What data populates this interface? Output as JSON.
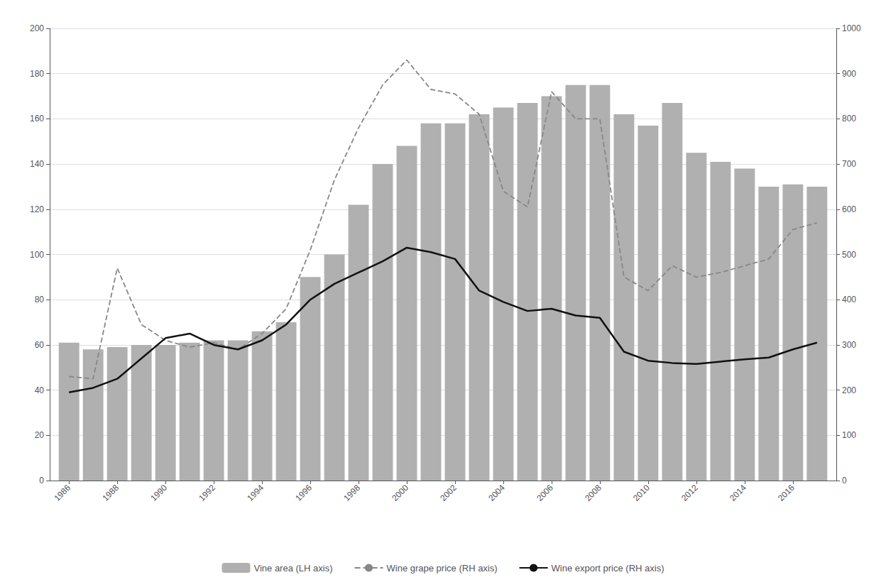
{
  "chart_data": {
    "type": "bar",
    "x": [
      1986,
      1987,
      1988,
      1989,
      1990,
      1991,
      1992,
      1993,
      1994,
      1995,
      1996,
      1997,
      1998,
      1999,
      2000,
      2001,
      2002,
      2003,
      2004,
      2005,
      2006,
      2007,
      2008,
      2009,
      2010,
      2011,
      2012,
      2013,
      2014,
      2015,
      2016,
      2017
    ],
    "series": [
      {
        "name": "Vine area (LH axis)",
        "type": "bar",
        "color": "#b0b0b0",
        "values": [
          61,
          58,
          59,
          60,
          60,
          61,
          62,
          62,
          66,
          70,
          90,
          100,
          122,
          140,
          148,
          158,
          158,
          162,
          165,
          167,
          170,
          175,
          175,
          162,
          157,
          167,
          145,
          141,
          138,
          130,
          131,
          130
        ]
      },
      {
        "name": "Wine grape price (RH axis)",
        "type": "line",
        "axis": "y2",
        "color": "#888888",
        "line_style": "dashed",
        "values": [
          230,
          225,
          470,
          345,
          310,
          295,
          305,
          290,
          325,
          380,
          510,
          665,
          780,
          875,
          930,
          865,
          855,
          810,
          640,
          605,
          860,
          800,
          800,
          450,
          420,
          475,
          450,
          460,
          475,
          490,
          555,
          570
        ]
      },
      {
        "name": "Wine export price (RH axis)",
        "type": "line",
        "axis": "y2",
        "color": "#111111",
        "line_style": "solid",
        "values": [
          195,
          205,
          225,
          270,
          315,
          325,
          300,
          290,
          310,
          345,
          400,
          435,
          460,
          485,
          515,
          505,
          490,
          420,
          395,
          375,
          380,
          365,
          360,
          285,
          265,
          260,
          258,
          263,
          268,
          272,
          290,
          305
        ]
      }
    ],
    "xlim": [
      1985.2,
      2017.8
    ],
    "xticks": [
      1986,
      1988,
      1990,
      1992,
      1994,
      1996,
      1998,
      2000,
      2002,
      2004,
      2006,
      2008,
      2010,
      2012,
      2014,
      2016
    ],
    "ylim": [
      0,
      200
    ],
    "yticks": [
      0,
      20,
      40,
      60,
      80,
      100,
      120,
      140,
      160,
      180,
      200
    ],
    "y2lim": [
      0,
      1000
    ],
    "y2ticks": [
      0,
      100,
      200,
      300,
      400,
      500,
      600,
      700,
      800,
      900,
      1000
    ],
    "grid": true,
    "legend": "bottom"
  }
}
